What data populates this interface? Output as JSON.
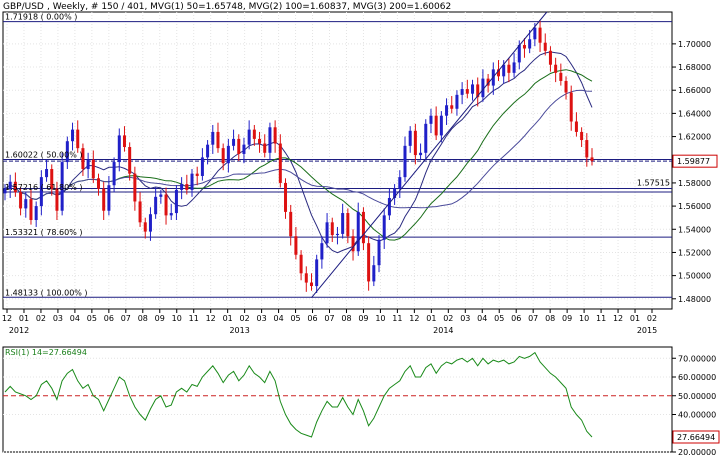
{
  "header": {
    "symbol": "GBP/USD",
    "info": ", Weekly, # 150 / 401, MVG(1) 50=1.65748, MVG(2) 100=1.60837, MVG(3) 200=1.60062"
  },
  "chart_data": [
    {
      "type": "candlestick",
      "title": "",
      "x_tick_labels": [
        "12",
        "01",
        "02",
        "03",
        "04",
        "05",
        "06",
        "07",
        "08",
        "09",
        "10",
        "11",
        "12",
        "01",
        "02",
        "03",
        "04",
        "05",
        "06",
        "07",
        "08",
        "09",
        "10",
        "11",
        "12",
        "01",
        "02",
        "03",
        "04",
        "05",
        "06",
        "07",
        "08",
        "09",
        "10",
        "11",
        "12",
        "01",
        "02"
      ],
      "year_labels": [
        {
          "label": "2012",
          "tick_index": 0
        },
        {
          "label": "2013",
          "tick_index": 13
        },
        {
          "label": "2014",
          "tick_index": 25
        },
        {
          "label": "2015",
          "tick_index": 37
        }
      ],
      "y_ticks": [
        1.48,
        1.5,
        1.52,
        1.54,
        1.56,
        1.58,
        1.6,
        1.62,
        1.64,
        1.66,
        1.68,
        1.7
      ],
      "y_tick_labels": [
        "1.48000",
        "1.50000",
        "1.52000",
        "1.54000",
        "1.56000",
        "1.58000",
        "1.60000",
        "1.62000",
        "1.64000",
        "1.66000",
        "1.68000",
        "1.70000"
      ],
      "ylim": [
        1.4712,
        1.7275
      ],
      "last_price": {
        "value": 1.59877,
        "label": "1.59877"
      },
      "level_line": {
        "value": 1.57515,
        "label": "1.57515"
      },
      "fibonacci": [
        {
          "value": 1.71918,
          "label": "1.71918 ( 0.00% )"
        },
        {
          "value": 1.60022,
          "label": "1.60022 ( 50.00% )"
        },
        {
          "value": 1.57216,
          "label": "1.57216 ( 61.80% )"
        },
        {
          "value": 1.53321,
          "label": "1.53321 ( 78.60% )"
        },
        {
          "value": 1.48133,
          "label": "1.48133 ( 100.00% )"
        }
      ],
      "moving_averages": [
        {
          "name": "MVG(1) 50",
          "value": 1.65748,
          "color": "#2a2a80"
        },
        {
          "name": "MVG(2) 100",
          "value": 1.60837,
          "color": "#1a6e1a"
        },
        {
          "name": "MVG(3) 200",
          "value": 1.60062,
          "color": "#4a4a9a"
        }
      ],
      "closes": [
        1.575,
        1.581,
        1.572,
        1.558,
        1.566,
        1.548,
        1.56,
        1.585,
        1.592,
        1.575,
        1.556,
        1.598,
        1.616,
        1.626,
        1.61,
        1.592,
        1.6,
        1.584,
        1.575,
        1.556,
        1.578,
        1.598,
        1.621,
        1.611,
        1.588,
        1.564,
        1.546,
        1.538,
        1.553,
        1.568,
        1.57,
        1.552,
        1.554,
        1.574,
        1.579,
        1.574,
        1.588,
        1.586,
        1.602,
        1.613,
        1.624,
        1.61,
        1.597,
        1.612,
        1.618,
        1.605,
        1.613,
        1.626,
        1.618,
        1.614,
        1.606,
        1.628,
        1.614,
        1.58,
        1.555,
        1.534,
        1.518,
        1.502,
        1.494,
        1.491,
        1.514,
        1.528,
        1.546,
        1.535,
        1.536,
        1.554,
        1.534,
        1.521,
        1.555,
        1.528,
        1.495,
        1.509,
        1.531,
        1.552,
        1.567,
        1.575,
        1.585,
        1.612,
        1.625,
        1.604,
        1.606,
        1.631,
        1.638,
        1.621,
        1.638,
        1.647,
        1.644,
        1.656,
        1.661,
        1.657,
        1.665,
        1.654,
        1.67,
        1.664,
        1.678,
        1.672,
        1.682,
        1.675,
        1.684,
        1.699,
        1.696,
        1.704,
        1.714,
        1.701,
        1.694,
        1.682,
        1.675,
        1.668,
        1.658,
        1.633,
        1.624,
        1.617,
        1.602,
        1.599
      ],
      "colors": {
        "up": "#2020c8",
        "down": "#dd1111"
      },
      "rsi": {
        "label": "RSI(1) 14=27.66494",
        "ylim": [
          20,
          76
        ],
        "y_tick_labels": [
          "20.00000",
          "40.00000",
          "50.00000",
          "60.00000",
          "70.00000"
        ],
        "y_ticks": [
          20,
          40,
          50,
          60,
          70
        ],
        "reference_line": 50,
        "last_label": "27.66494",
        "values": [
          52,
          55,
          52,
          51,
          50,
          48,
          50,
          56,
          58,
          54,
          48,
          58,
          62,
          64,
          58,
          54,
          56,
          50,
          48,
          42,
          48,
          54,
          60,
          58,
          50,
          44,
          40,
          37,
          43,
          48,
          50,
          44,
          45,
          52,
          54,
          52,
          56,
          55,
          60,
          63,
          66,
          62,
          57,
          61,
          63,
          58,
          61,
          66,
          62,
          60,
          57,
          63,
          58,
          47,
          40,
          35,
          32,
          30,
          29,
          28,
          36,
          42,
          47,
          44,
          44,
          49,
          44,
          40,
          48,
          42,
          34,
          38,
          44,
          50,
          54,
          56,
          58,
          63,
          66,
          60,
          60,
          65,
          67,
          62,
          66,
          68,
          67,
          69,
          70,
          68,
          70,
          66,
          70,
          67,
          69,
          68,
          69,
          67,
          68,
          71,
          70,
          71,
          73,
          68,
          65,
          62,
          60,
          57,
          54,
          44,
          40,
          37,
          31,
          28
        ]
      }
    }
  ]
}
